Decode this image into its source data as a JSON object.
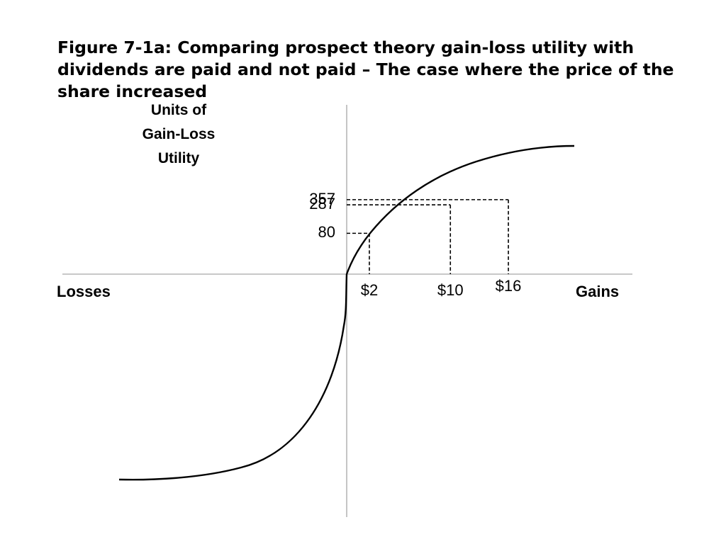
{
  "title": "Figure 7-1a: Comparing prospect theory gain-loss utility with dividends are paid and not paid – The case where the price of the share increased",
  "y_axis_label": [
    "Units of",
    "Gain-Loss",
    "Utility"
  ],
  "left_label": "Losses",
  "right_label": "Gains",
  "colors": {
    "curve": "#000000",
    "axis": "#a6a6a6",
    "guide": "#000000"
  },
  "chart_data": {
    "type": "line",
    "title": "Figure 7-1a: Comparing prospect theory gain-loss utility with dividends are paid and not paid – The case where the price of the share increased",
    "ylabel": "Units of Gain-Loss Utility",
    "xlabel_left": "Losses",
    "xlabel_right": "Gains",
    "x_unit": "$",
    "x_tick_labels": [
      "$2",
      "$10",
      "$16"
    ],
    "y_tick_labels": [
      "80",
      "287",
      "357"
    ],
    "marked_points": [
      {
        "x": 2,
        "y": 80
      },
      {
        "x": 10,
        "y": 287
      },
      {
        "x": 16,
        "y": 357
      }
    ],
    "xlim": [
      -28,
      28
    ],
    "ylim": [
      -625,
      385
    ],
    "curve": "S-shaped value function: concave for gains, convex and steeper for losses",
    "grid": false,
    "legend": "none"
  }
}
